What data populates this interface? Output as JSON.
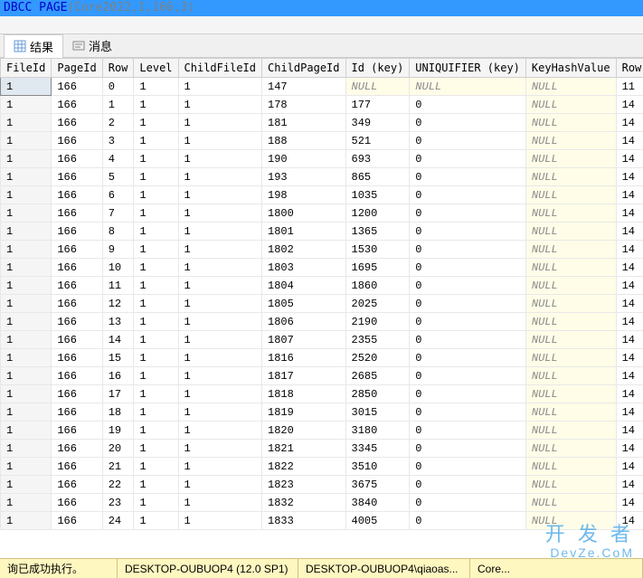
{
  "header": {
    "command": "DBCC PAGE",
    "args": "(Core2022,1,166,3)"
  },
  "tabs": {
    "results": "结果",
    "messages": "消息"
  },
  "columns": [
    "FileId",
    "PageId",
    "Row",
    "Level",
    "ChildFileId",
    "ChildPageId",
    "Id (key)",
    "UNIQUIFIER (key)",
    "KeyHashValue",
    "Row Size"
  ],
  "rows": [
    [
      "1",
      "166",
      "0",
      "1",
      "1",
      "147",
      "NULL",
      "NULL",
      "NULL",
      "11"
    ],
    [
      "1",
      "166",
      "1",
      "1",
      "1",
      "178",
      "177",
      "0",
      "NULL",
      "14"
    ],
    [
      "1",
      "166",
      "2",
      "1",
      "1",
      "181",
      "349",
      "0",
      "NULL",
      "14"
    ],
    [
      "1",
      "166",
      "3",
      "1",
      "1",
      "188",
      "521",
      "0",
      "NULL",
      "14"
    ],
    [
      "1",
      "166",
      "4",
      "1",
      "1",
      "190",
      "693",
      "0",
      "NULL",
      "14"
    ],
    [
      "1",
      "166",
      "5",
      "1",
      "1",
      "193",
      "865",
      "0",
      "NULL",
      "14"
    ],
    [
      "1",
      "166",
      "6",
      "1",
      "1",
      "198",
      "1035",
      "0",
      "NULL",
      "14"
    ],
    [
      "1",
      "166",
      "7",
      "1",
      "1",
      "1800",
      "1200",
      "0",
      "NULL",
      "14"
    ],
    [
      "1",
      "166",
      "8",
      "1",
      "1",
      "1801",
      "1365",
      "0",
      "NULL",
      "14"
    ],
    [
      "1",
      "166",
      "9",
      "1",
      "1",
      "1802",
      "1530",
      "0",
      "NULL",
      "14"
    ],
    [
      "1",
      "166",
      "10",
      "1",
      "1",
      "1803",
      "1695",
      "0",
      "NULL",
      "14"
    ],
    [
      "1",
      "166",
      "11",
      "1",
      "1",
      "1804",
      "1860",
      "0",
      "NULL",
      "14"
    ],
    [
      "1",
      "166",
      "12",
      "1",
      "1",
      "1805",
      "2025",
      "0",
      "NULL",
      "14"
    ],
    [
      "1",
      "166",
      "13",
      "1",
      "1",
      "1806",
      "2190",
      "0",
      "NULL",
      "14"
    ],
    [
      "1",
      "166",
      "14",
      "1",
      "1",
      "1807",
      "2355",
      "0",
      "NULL",
      "14"
    ],
    [
      "1",
      "166",
      "15",
      "1",
      "1",
      "1816",
      "2520",
      "0",
      "NULL",
      "14"
    ],
    [
      "1",
      "166",
      "16",
      "1",
      "1",
      "1817",
      "2685",
      "0",
      "NULL",
      "14"
    ],
    [
      "1",
      "166",
      "17",
      "1",
      "1",
      "1818",
      "2850",
      "0",
      "NULL",
      "14"
    ],
    [
      "1",
      "166",
      "18",
      "1",
      "1",
      "1819",
      "3015",
      "0",
      "NULL",
      "14"
    ],
    [
      "1",
      "166",
      "19",
      "1",
      "1",
      "1820",
      "3180",
      "0",
      "NULL",
      "14"
    ],
    [
      "1",
      "166",
      "20",
      "1",
      "1",
      "1821",
      "3345",
      "0",
      "NULL",
      "14"
    ],
    [
      "1",
      "166",
      "21",
      "1",
      "1",
      "1822",
      "3510",
      "0",
      "NULL",
      "14"
    ],
    [
      "1",
      "166",
      "22",
      "1",
      "1",
      "1823",
      "3675",
      "0",
      "NULL",
      "14"
    ],
    [
      "1",
      "166",
      "23",
      "1",
      "1",
      "1832",
      "3840",
      "0",
      "NULL",
      "14"
    ],
    [
      "1",
      "166",
      "24",
      "1",
      "1",
      "1833",
      "4005",
      "0",
      "NULL",
      "14"
    ]
  ],
  "null_columns_idx": [
    6,
    7,
    8
  ],
  "status": {
    "success": "询已成功执行。",
    "server": "DESKTOP-OUBUOP4 (12.0 SP1)",
    "user": "DESKTOP-OUBUOP4\\qiaoas...",
    "db": "Core..."
  },
  "watermark": {
    "line1": "开 发 者",
    "line2": "DevZe.CoM"
  },
  "colors": {
    "header_bg": "#3399ff",
    "null_bg": "#fffde8",
    "status_bg": "#fff7c0",
    "watermark_color": "#4aa8e8"
  }
}
